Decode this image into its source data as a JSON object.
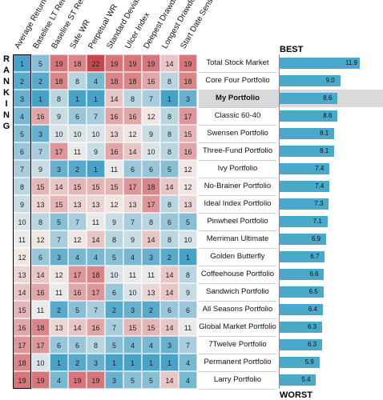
{
  "chart_data": {
    "type": "heatmap-table",
    "side_label": "RANKING",
    "best_label": "BEST",
    "worst_label": "WORST",
    "color_low": "#48a2c6",
    "color_mid": "#f2eeec",
    "color_high": "#c9464e",
    "bar_color": "#4aa8c8",
    "highlight": "My Portfolio",
    "columns": [
      "Average Return",
      "Baseline LT Return",
      "Baseline ST Return",
      "Safe WR",
      "Perpetual WR",
      "Standard Deviation",
      "Ulcer Index",
      "Deepest Drawdown",
      "Longest Drawdown",
      "Start Date Sensitivity"
    ],
    "rows": [
      {
        "name": "Total Stock Market",
        "ranks": [
          1,
          5,
          19,
          18,
          22,
          19,
          19,
          19,
          14,
          19
        ],
        "value": 11.9,
        "value_label": "11.9"
      },
      {
        "name": "Core Four Portfolio",
        "ranks": [
          2,
          2,
          18,
          8,
          4,
          18,
          18,
          16,
          8,
          18
        ],
        "value": 9.0,
        "value_label": "9.0"
      },
      {
        "name": "My Portfolio",
        "ranks": [
          3,
          1,
          8,
          1,
          1,
          14,
          8,
          7,
          1,
          3
        ],
        "value": 8.6,
        "value_label": "8.6"
      },
      {
        "name": "Classic 60-40",
        "ranks": [
          4,
          16,
          9,
          6,
          7,
          16,
          16,
          12,
          8,
          17
        ],
        "value": 8.6,
        "value_label": "8.6"
      },
      {
        "name": "Swensen Portfolio",
        "ranks": [
          5,
          3,
          10,
          10,
          10,
          13,
          12,
          9,
          8,
          15
        ],
        "value": 8.1,
        "value_label": "8.1"
      },
      {
        "name": "Three-Fund Portfolio",
        "ranks": [
          6,
          7,
          17,
          11,
          9,
          16,
          14,
          10,
          8,
          16
        ],
        "value": 8.1,
        "value_label": "8.1"
      },
      {
        "name": "Ivy Portfolio",
        "ranks": [
          7,
          9,
          3,
          2,
          1,
          11,
          6,
          6,
          5,
          12
        ],
        "value": 7.4,
        "value_label": "7.4"
      },
      {
        "name": "No-Brainer Portfolio",
        "ranks": [
          8,
          15,
          14,
          15,
          15,
          15,
          17,
          18,
          14,
          12
        ],
        "value": 7.4,
        "value_label": "7.4"
      },
      {
        "name": "Ideal Index Portfolio",
        "ranks": [
          9,
          13,
          15,
          13,
          13,
          12,
          13,
          17,
          8,
          13
        ],
        "value": 7.3,
        "value_label": "7.3"
      },
      {
        "name": "Pinwheel Portfolio",
        "ranks": [
          10,
          8,
          5,
          7,
          11,
          9,
          7,
          8,
          6,
          5
        ],
        "value": 7.1,
        "value_label": "7.1"
      },
      {
        "name": "Merriman Ultimate",
        "ranks": [
          11,
          12,
          7,
          12,
          14,
          8,
          9,
          14,
          8,
          10
        ],
        "value": 6.9,
        "value_label": "6.9"
      },
      {
        "name": "Golden Butterfly",
        "ranks": [
          12,
          6,
          3,
          4,
          4,
          5,
          4,
          3,
          2,
          1
        ],
        "value": 6.7,
        "value_label": "6.7"
      },
      {
        "name": "Coffeehouse Portfolio",
        "ranks": [
          13,
          14,
          12,
          17,
          18,
          10,
          11,
          11,
          14,
          8
        ],
        "value": 6.6,
        "value_label": "6.6"
      },
      {
        "name": "Sandwich Portfolio",
        "ranks": [
          14,
          16,
          11,
          16,
          17,
          6,
          10,
          13,
          14,
          9
        ],
        "value": 6.5,
        "value_label": "6.5"
      },
      {
        "name": "All Seasons Portfolio",
        "ranks": [
          15,
          11,
          2,
          5,
          7,
          2,
          3,
          2,
          6,
          6
        ],
        "value": 6.4,
        "value_label": "6.4"
      },
      {
        "name": "Global Market Portfolio",
        "ranks": [
          16,
          18,
          13,
          14,
          16,
          7,
          15,
          15,
          14,
          11
        ],
        "value": 6.3,
        "value_label": "6.3"
      },
      {
        "name": "7Twelve Portfolio",
        "ranks": [
          17,
          17,
          6,
          6,
          8,
          5,
          4,
          4,
          3,
          7
        ],
        "value": 6.3,
        "value_label": "6.3"
      },
      {
        "name": "Permanent Portfolio",
        "ranks": [
          18,
          10,
          1,
          2,
          3,
          1,
          1,
          1,
          1,
          4
        ],
        "value": 5.9,
        "value_label": "5.9"
      },
      {
        "name": "Larry Portfolio",
        "ranks": [
          19,
          19,
          4,
          19,
          19,
          3,
          5,
          5,
          14,
          4
        ],
        "value": 5.4,
        "value_label": "5.4"
      }
    ]
  }
}
